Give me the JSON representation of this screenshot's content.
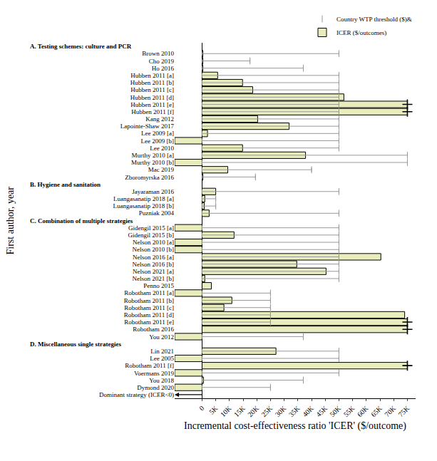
{
  "chart_data": {
    "type": "bar",
    "orientation": "horizontal",
    "xlabel": "Incremental cost-effectiveness ratio 'ICER' ($/outcome)",
    "ylabel": "First author, year",
    "xlim": [
      -10000,
      78000
    ],
    "xticks": [
      0,
      {
        "value": 5000,
        "label": "5K"
      },
      {
        "value": 10000,
        "label": "10K"
      },
      {
        "value": 15000,
        "label": "15K"
      },
      {
        "value": 20000,
        "label": "20K"
      },
      {
        "value": 25000,
        "label": "25K"
      },
      {
        "value": 30000,
        "label": "30K"
      },
      {
        "value": 35000,
        "label": "35K"
      },
      {
        "value": 40000,
        "label": "40K"
      },
      {
        "value": 45000,
        "label": "45K"
      },
      {
        "value": 50000,
        "label": "50K"
      },
      {
        "value": 55000,
        "label": "55K"
      },
      {
        "value": 60000,
        "label": "60K"
      },
      {
        "value": 65000,
        "label": "65K"
      },
      {
        "value": 70000,
        "label": "70K"
      },
      {
        "value": 75000,
        "label": "75K"
      }
    ],
    "grid": false,
    "legend": "top right",
    "series": [
      {
        "name": "Country WTP threshold ($)&",
        "color": "#999999",
        "type": "errorbar"
      },
      {
        "name": "ICER ($/outcomes)",
        "color": "#e9edbe",
        "type": "bar"
      },
      {
        "color": "#000000",
        "type": "scatter",
        "marker": "cross"
      }
    ],
    "groups": [
      {
        "title": "A. Testing schemes: culture and PCR",
        "categories": [
          "Brown 2010",
          "Cho 2019",
          "Ho 2016",
          "Hubben 2011 [a]",
          "Hubben 2011 [b]",
          "Hubben 2011 [c]",
          "Hubben 2011 [d]",
          "Hubben 2011 [e]",
          "Hubben 2011 [f]",
          "Kang 2012",
          "Lapointe-Shaw 2017",
          "Lee 2009 [a]",
          "Lee 2009 [b]",
          "Lee 2010",
          "Murthy 2010 [a]",
          "Murthy 2010 [b]",
          "Mac 2019",
          "Zboromyrska 2016"
        ],
        "values": [
          [
            50000,
            17500,
            37000,
            50000,
            50000,
            50000,
            50000,
            50000,
            50000,
            50000,
            50000,
            50000,
            50000,
            50000,
            75000,
            75000,
            40000,
            19500
          ],
          [
            300,
            300,
            300,
            5700,
            14800,
            18500,
            51800,
            75000,
            75000,
            20300,
            31800,
            2000,
            -10000,
            14800,
            37800,
            -10000,
            9400,
            300
          ],
          [
            null,
            null,
            null,
            null,
            null,
            null,
            null,
            75000,
            75000,
            null,
            null,
            null,
            null,
            null,
            null,
            null,
            null,
            null
          ]
        ]
      },
      {
        "title": "B. Hygiene and sanitation",
        "categories": [
          "Jayaraman 2016",
          "Luangasanatip 2018 [a]",
          "Luangasanatip 2018 [b]",
          "Puzniak 2004"
        ],
        "values": [
          [
            50000,
            5000,
            5000,
            50000
          ],
          [
            5000,
            1000,
            800,
            2600
          ],
          [
            null,
            null,
            null,
            null
          ]
        ]
      },
      {
        "title": "C. Combination of multiple strategies",
        "categories": [
          "Gidengil 2015 [a]",
          "Gidengil 2015 [b]",
          "Nelson 2010 [a]",
          "Nelson 2010 [b]",
          "Nelson 2016 [a]",
          "Nelson 2016 [b]",
          "Nelson 2021 [a]",
          "Nelson 2021 [b]",
          "Penno 2015",
          "Robotham 2011 [a]",
          "Robotham 2011 [b]",
          "Robotham 2011 [c]",
          "Robotham 2011 [d]",
          "Robotham 2011 [e]",
          "Robotham 2016",
          "You 2012"
        ],
        "values": [
          [
            50000,
            50000,
            50000,
            50000,
            50000,
            50000,
            50000,
            50000,
            null,
            25000,
            25000,
            25000,
            25000,
            25000,
            null,
            37000
          ],
          [
            -10000,
            11700,
            -10000,
            -10000,
            65300,
            34600,
            45300,
            1000,
            3400,
            -10000,
            10900,
            8000,
            74000,
            75000,
            75000,
            -10000
          ],
          [
            null,
            null,
            null,
            null,
            null,
            null,
            null,
            null,
            null,
            null,
            null,
            null,
            null,
            75000,
            75000,
            null
          ]
        ]
      },
      {
        "title": "D. Miscellaneous single strategies",
        "categories": [
          "Lin 2021",
          "Lee 2005",
          "Robotham 2011 [f]",
          "Voermans 2019",
          "You 2018",
          "Dymond 2020"
        ],
        "values": [
          [
            50000,
            50000,
            null,
            50000,
            37000,
            25000
          ],
          [
            27000,
            -10000,
            75000,
            -10000,
            500,
            -10000
          ],
          [
            null,
            null,
            75000,
            null,
            null,
            null
          ]
        ]
      }
    ],
    "annotation": "Dominant strategy (ICER<0)"
  }
}
